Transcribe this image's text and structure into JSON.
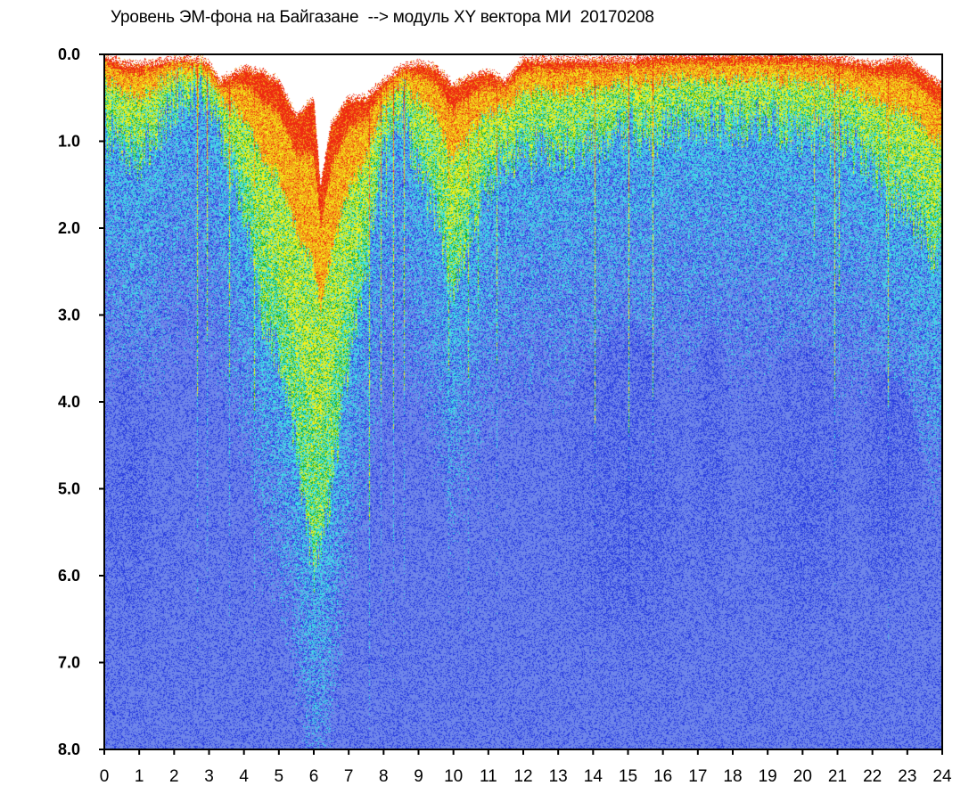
{
  "chart_data": {
    "type": "heatmap",
    "title": "Уровень ЭМ-фона на Байгазане  --> модуль XY вектора МИ  20170208",
    "xlabel": "",
    "ylabel": "",
    "x_ticks": [
      "0",
      "1",
      "2",
      "3",
      "4",
      "5",
      "6",
      "7",
      "8",
      "9",
      "10",
      "11",
      "12",
      "13",
      "14",
      "15",
      "16",
      "17",
      "18",
      "19",
      "20",
      "21",
      "22",
      "23",
      "24"
    ],
    "y_ticks": [
      "0.0",
      "1.0",
      "2.0",
      "3.0",
      "4.0",
      "5.0",
      "6.0",
      "7.0",
      "8.0"
    ],
    "xlim": [
      0,
      24
    ],
    "ylim": [
      8.0,
      0.0
    ],
    "colors": {
      "background": "#6f86ea",
      "low": "#2a3ee0",
      "mid": "#3fe0e6",
      "green": "#19b02a",
      "yellow": "#f3ef1a",
      "orange": "#f29b18",
      "high": "#ee2a12",
      "void": "#ffffff"
    },
    "upper_boundary": [
      [
        0.0,
        0.0
      ],
      [
        0.5,
        0.1
      ],
      [
        1.0,
        0.1
      ],
      [
        2.0,
        0.05
      ],
      [
        2.8,
        0.05
      ],
      [
        3.0,
        0.1
      ],
      [
        3.3,
        0.3
      ],
      [
        3.8,
        0.2
      ],
      [
        4.0,
        0.15
      ],
      [
        4.5,
        0.2
      ],
      [
        5.0,
        0.3
      ],
      [
        5.5,
        0.7
      ],
      [
        6.0,
        0.5
      ],
      [
        6.2,
        1.5
      ],
      [
        6.5,
        0.8
      ],
      [
        7.0,
        0.5
      ],
      [
        7.5,
        0.5
      ],
      [
        8.0,
        0.3
      ],
      [
        8.5,
        0.15
      ],
      [
        9.0,
        0.1
      ],
      [
        9.5,
        0.15
      ],
      [
        10.0,
        0.35
      ],
      [
        10.5,
        0.25
      ],
      [
        11.0,
        0.2
      ],
      [
        11.5,
        0.3
      ],
      [
        12.0,
        0.05
      ],
      [
        13.0,
        0.05
      ],
      [
        14.0,
        0.05
      ],
      [
        15.0,
        0.05
      ],
      [
        16.0,
        0.0
      ],
      [
        17.0,
        0.0
      ],
      [
        18.0,
        0.0
      ],
      [
        19.0,
        0.0
      ],
      [
        20.0,
        0.0
      ],
      [
        21.0,
        0.05
      ],
      [
        22.0,
        0.1
      ],
      [
        23.0,
        0.05
      ],
      [
        23.5,
        0.2
      ],
      [
        24.0,
        0.35
      ]
    ],
    "hot_band_depth": [
      [
        0.0,
        0.9
      ],
      [
        1.0,
        1.2
      ],
      [
        2.0,
        0.6
      ],
      [
        3.0,
        0.5
      ],
      [
        4.0,
        1.8
      ],
      [
        4.5,
        3.0
      ],
      [
        5.0,
        3.5
      ],
      [
        5.5,
        4.5
      ],
      [
        6.0,
        6.0
      ],
      [
        6.5,
        5.0
      ],
      [
        7.0,
        3.5
      ],
      [
        7.5,
        2.5
      ],
      [
        8.0,
        1.0
      ],
      [
        8.5,
        0.7
      ],
      [
        9.0,
        1.4
      ],
      [
        9.5,
        1.8
      ],
      [
        10.0,
        2.8
      ],
      [
        10.5,
        2.0
      ],
      [
        11.0,
        1.5
      ],
      [
        12.0,
        1.0
      ],
      [
        13.0,
        1.2
      ],
      [
        14.0,
        1.0
      ],
      [
        15.0,
        0.9
      ],
      [
        16.0,
        0.9
      ],
      [
        17.0,
        0.8
      ],
      [
        18.0,
        0.8
      ],
      [
        19.0,
        0.8
      ],
      [
        20.0,
        0.9
      ],
      [
        21.0,
        0.9
      ],
      [
        22.0,
        1.3
      ],
      [
        23.0,
        1.8
      ],
      [
        24.0,
        2.4
      ]
    ],
    "dark_zones": [
      {
        "x": [
          13.0,
          16.8
        ],
        "y": [
          3.0,
          7.2
        ]
      },
      {
        "x": [
          16.8,
          18.0
        ],
        "y": [
          3.0,
          6.5
        ]
      },
      {
        "x": [
          18.5,
          21.5
        ],
        "y": [
          3.2,
          7.0
        ]
      },
      {
        "x": [
          21.5,
          23.5
        ],
        "y": [
          3.5,
          6.5
        ]
      },
      {
        "x": [
          0.0,
          1.5
        ],
        "y": [
          3.5,
          7.0
        ]
      }
    ],
    "grid": false,
    "legend": "none"
  }
}
